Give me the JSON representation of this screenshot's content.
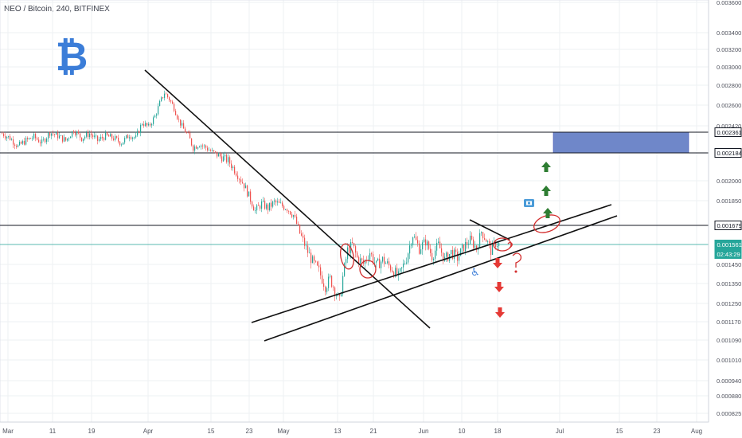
{
  "header": {
    "title": "NEO / Bitcoin, 240, BITFINEX"
  },
  "chart_data": {
    "type": "candlestick",
    "title": "NEO / Bitcoin, 240, BITFINEX",
    "y_axis": {
      "ticks": [
        "0.003600",
        "0.003400",
        "0.003200",
        "0.003000",
        "0.002800",
        "0.002600",
        "0.002420",
        "0.002000",
        "0.001850",
        "0.001520",
        "0.001450",
        "0.001350",
        "0.001250",
        "0.001170",
        "0.001090",
        "0.001010",
        "0.000940",
        "0.000880",
        "0.000825"
      ]
    },
    "x_axis": {
      "ticks": [
        "Mar",
        "11",
        "19",
        "Apr",
        "15",
        "23",
        "May",
        "13",
        "21",
        "Jun",
        "10",
        "18",
        "Jul",
        "15",
        "23",
        "Aug"
      ]
    },
    "price_tags": [
      {
        "label": "0.002361",
        "style": "dark"
      },
      {
        "label": "0.002184",
        "style": "dark"
      },
      {
        "label": "0.001679",
        "style": "dark"
      },
      {
        "label": "0.001561",
        "style": "teal"
      },
      {
        "label": "02:43:29",
        "style": "teal"
      }
    ],
    "price_path": [
      [
        2,
        0.00235
      ],
      [
        12,
        0.00231
      ],
      [
        22,
        0.00224
      ],
      [
        32,
        0.00229
      ],
      [
        42,
        0.00232
      ],
      [
        52,
        0.00227
      ],
      [
        62,
        0.00236
      ],
      [
        72,
        0.00233
      ],
      [
        82,
        0.00229
      ],
      [
        92,
        0.00238
      ],
      [
        102,
        0.00231
      ],
      [
        112,
        0.00235
      ],
      [
        122,
        0.00229
      ],
      [
        132,
        0.00233
      ],
      [
        142,
        0.00231
      ],
      [
        152,
        0.00227
      ],
      [
        162,
        0.00234
      ],
      [
        170,
        0.00231
      ],
      [
        178,
        0.00245
      ],
      [
        186,
        0.00241
      ],
      [
        194,
        0.00251
      ],
      [
        200,
        0.00263
      ],
      [
        206,
        0.00273
      ],
      [
        212,
        0.00267
      ],
      [
        218,
        0.00259
      ],
      [
        224,
        0.00247
      ],
      [
        230,
        0.00239
      ],
      [
        236,
        0.00233
      ],
      [
        242,
        0.00223
      ],
      [
        250,
        0.00226
      ],
      [
        258,
        0.00223
      ],
      [
        266,
        0.00219
      ],
      [
        276,
        0.00216
      ],
      [
        286,
        0.00213
      ],
      [
        296,
        0.00205
      ],
      [
        306,
        0.00196
      ],
      [
        314,
        0.00186
      ],
      [
        320,
        0.00178
      ],
      [
        328,
        0.00183
      ],
      [
        336,
        0.0018
      ],
      [
        344,
        0.00184
      ],
      [
        352,
        0.00182
      ],
      [
        360,
        0.0018
      ],
      [
        368,
        0.00175
      ],
      [
        376,
        0.00163
      ],
      [
        384,
        0.00154
      ],
      [
        392,
        0.00147
      ],
      [
        400,
        0.00142
      ],
      [
        408,
        0.00134
      ],
      [
        414,
        0.00138
      ],
      [
        420,
        0.00132
      ],
      [
        426,
        0.00126
      ],
      [
        430,
        0.00139
      ],
      [
        436,
        0.00153
      ],
      [
        442,
        0.00156
      ],
      [
        448,
        0.00149
      ],
      [
        456,
        0.00146
      ],
      [
        464,
        0.00152
      ],
      [
        472,
        0.00145
      ],
      [
        480,
        0.00148
      ],
      [
        490,
        0.00144
      ],
      [
        500,
        0.00139
      ],
      [
        510,
        0.00149
      ],
      [
        518,
        0.00162
      ],
      [
        526,
        0.00154
      ],
      [
        534,
        0.00158
      ],
      [
        542,
        0.0015
      ],
      [
        550,
        0.00156
      ],
      [
        558,
        0.00148
      ],
      [
        566,
        0.00152
      ],
      [
        574,
        0.00149
      ],
      [
        582,
        0.00155
      ],
      [
        590,
        0.00159
      ],
      [
        598,
        0.00154
      ],
      [
        604,
        0.00164
      ],
      [
        610,
        0.00159
      ],
      [
        616,
        0.00153
      ],
      [
        622,
        0.00157
      ],
      [
        628,
        0.00156
      ]
    ],
    "annotations": {
      "highlight_zone": {
        "low": 0.002184,
        "high": 0.002361
      },
      "horizontal_lines": [
        0.002361,
        0.002184,
        0.001679
      ],
      "current_price_line": 0.001561,
      "up_arrows": 3,
      "down_arrows": 3,
      "question_marks": 2
    },
    "logo_symbol": "₿",
    "colors": {
      "up": "#26a69a",
      "down": "#ef5350",
      "teal": "#26a69a",
      "zone": "#6f87c9",
      "logo": "#3b7dd8",
      "arrow_up": "#2e7d32",
      "arrow_down": "#e53935",
      "marker_red": "#d32f2f",
      "grid": "#eef0f3",
      "axis_text": "#50535e",
      "dark_tag": "#131722"
    }
  }
}
